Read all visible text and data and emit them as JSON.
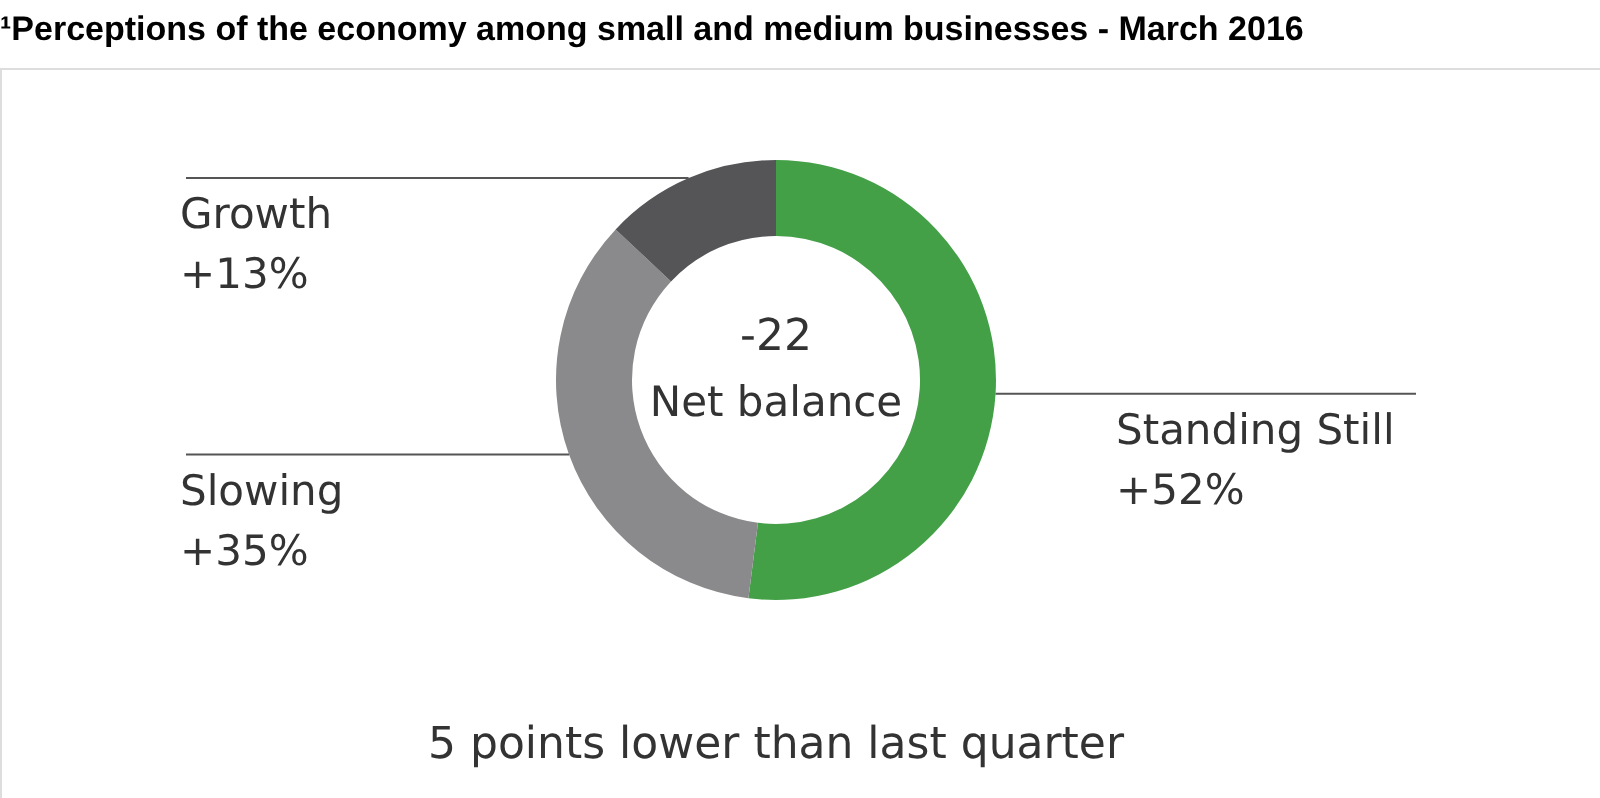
{
  "chart_data": {
    "type": "donut",
    "title": "¹Perceptions of the economy among small and medium businesses - March 2016",
    "categories": [
      "Standing Still",
      "Slowing",
      "Growth"
    ],
    "values": [
      52,
      35,
      13
    ],
    "colors": [
      "#43a047",
      "#8a8a8c",
      "#555558"
    ],
    "value_labels": [
      "+52%",
      "+35%",
      "+13%"
    ],
    "legend": false,
    "annotations": [
      "-22",
      "Net balance",
      "5 points lower than last quarter"
    ]
  }
}
